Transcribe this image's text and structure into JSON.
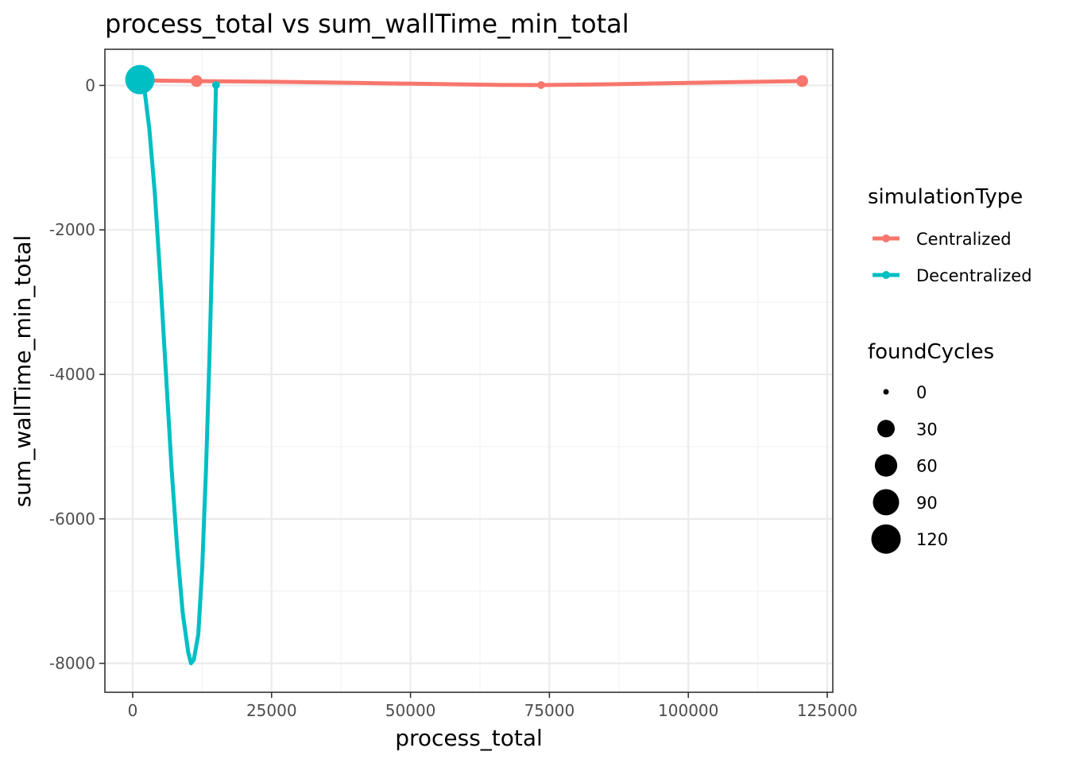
{
  "chart_data": {
    "type": "line",
    "title": "process_total  vs  sum_wallTime_min_total",
    "xlabel": "process_total",
    "ylabel": "sum_wallTime_min_total",
    "xlim": [
      -5000,
      126000
    ],
    "ylim": [
      -8400,
      500
    ],
    "x_ticks": [
      0,
      25000,
      50000,
      75000,
      100000,
      125000
    ],
    "x_tick_labels": [
      "0",
      "25000",
      "50000",
      "75000",
      "100000",
      "125000"
    ],
    "y_ticks": [
      0,
      -2000,
      -4000,
      -6000,
      -8000
    ],
    "y_tick_labels": [
      "0",
      "-2000",
      "-4000",
      "-6000",
      "-8000"
    ],
    "grid": true,
    "series": [
      {
        "name": "Centralized",
        "color": "#F8766D",
        "points": [
          {
            "x": 1200,
            "y": 70,
            "foundCycles": 0
          },
          {
            "x": 11500,
            "y": 60,
            "foundCycles": 8
          },
          {
            "x": 73500,
            "y": 5,
            "foundCycles": 1
          },
          {
            "x": 120500,
            "y": 60,
            "foundCycles": 8
          }
        ],
        "smooth_curve": [
          [
            1200,
            70
          ],
          [
            11500,
            60
          ],
          [
            25000,
            50
          ],
          [
            40000,
            35
          ],
          [
            55000,
            18
          ],
          [
            65000,
            7
          ],
          [
            73500,
            5
          ],
          [
            85000,
            15
          ],
          [
            100000,
            35
          ],
          [
            110000,
            48
          ],
          [
            120500,
            60
          ]
        ]
      },
      {
        "name": "Decentralized",
        "color": "#00BFC4",
        "points": [
          {
            "x": 1300,
            "y": 80,
            "foundCycles": 120
          },
          {
            "x": 15000,
            "y": 5,
            "foundCycles": 1
          }
        ],
        "smooth_curve": [
          [
            1300,
            80
          ],
          [
            2000,
            20
          ],
          [
            3000,
            -600
          ],
          [
            4000,
            -1500
          ],
          [
            5000,
            -2700
          ],
          [
            6000,
            -4000
          ],
          [
            7000,
            -5300
          ],
          [
            8000,
            -6400
          ],
          [
            9000,
            -7300
          ],
          [
            10000,
            -7850
          ],
          [
            10500,
            -8000
          ],
          [
            11000,
            -7950
          ],
          [
            11800,
            -7600
          ],
          [
            12500,
            -6700
          ],
          [
            13200,
            -5300
          ],
          [
            13800,
            -3800
          ],
          [
            14300,
            -2300
          ],
          [
            14700,
            -1000
          ],
          [
            15000,
            5
          ]
        ]
      }
    ],
    "legend": {
      "position": "right",
      "color_title": "simulationType",
      "color_entries": [
        "Centralized",
        "Decentralized"
      ],
      "size_title": "foundCycles",
      "size_entries": [
        0,
        30,
        60,
        90,
        120
      ],
      "size_labels": [
        "0",
        "30",
        "60",
        "90",
        "120"
      ]
    }
  }
}
